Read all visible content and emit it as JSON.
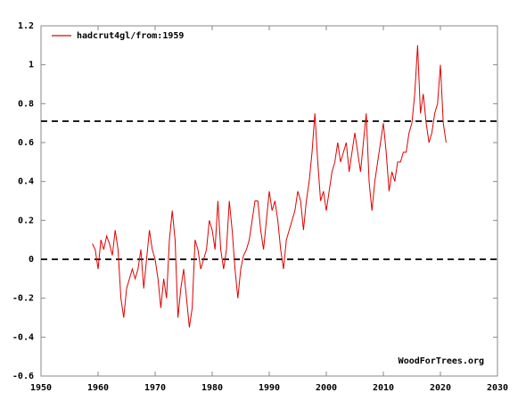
{
  "chart_data": {
    "type": "line",
    "annotation": "WoodForTrees.org",
    "xlim": [
      1950,
      2030
    ],
    "xticks": [
      1950,
      1960,
      1970,
      1980,
      1990,
      2000,
      2010,
      2020,
      2030
    ],
    "ylim": [
      -0.6,
      1.2
    ],
    "yticks": [
      -0.6,
      -0.4,
      -0.2,
      0,
      0.2,
      0.4,
      0.6,
      0.8,
      1,
      1.2
    ],
    "hlines": [
      0.71,
      0.0
    ],
    "x": [
      1959,
      1959.5,
      1960,
      1960.5,
      1961,
      1961.5,
      1962,
      1962.5,
      1963,
      1963.5,
      1964,
      1964.5,
      1965,
      1965.5,
      1966,
      1966.5,
      1967,
      1967.5,
      1968,
      1968.5,
      1969,
      1969.5,
      1970,
      1970.5,
      1971,
      1971.5,
      1972,
      1972.5,
      1973,
      1973.5,
      1974,
      1974.5,
      1975,
      1975.5,
      1976,
      1976.5,
      1977,
      1977.5,
      1978,
      1978.5,
      1979,
      1979.5,
      1980,
      1980.5,
      1981,
      1981.5,
      1982,
      1982.5,
      1983,
      1983.5,
      1984,
      1984.5,
      1985,
      1985.5,
      1986,
      1986.5,
      1987,
      1987.5,
      1988,
      1988.5,
      1989,
      1989.5,
      1990,
      1990.5,
      1991,
      1991.5,
      1992,
      1992.5,
      1993,
      1993.5,
      1994,
      1994.5,
      1995,
      1995.5,
      1996,
      1996.5,
      1997,
      1997.5,
      1998,
      1998.5,
      1999,
      1999.5,
      2000,
      2000.5,
      2001,
      2001.5,
      2002,
      2002.5,
      2003,
      2003.5,
      2004,
      2004.5,
      2005,
      2005.5,
      2006,
      2006.5,
      2007,
      2007.5,
      2008,
      2008.5,
      2009,
      2009.5,
      2010,
      2010.5,
      2011,
      2011.5,
      2012,
      2012.5,
      2013,
      2013.5,
      2014,
      2014.5,
      2015,
      2015.5,
      2016,
      2016.5,
      2017,
      2017.5,
      2018,
      2018.5,
      2019,
      2019.5,
      2020,
      2020.5,
      2021
    ],
    "series": [
      {
        "name": "hadcrut4gl/from:1959",
        "color": "#e00000",
        "values": [
          0.08,
          0.05,
          -0.05,
          0.1,
          0.05,
          0.12,
          0.08,
          0.02,
          0.15,
          0.05,
          -0.2,
          -0.3,
          -0.15,
          -0.1,
          -0.05,
          -0.1,
          -0.05,
          0.05,
          -0.15,
          0.0,
          0.15,
          0.05,
          0.0,
          -0.1,
          -0.25,
          -0.1,
          -0.2,
          0.1,
          0.25,
          0.1,
          -0.3,
          -0.15,
          -0.05,
          -0.2,
          -0.35,
          -0.25,
          0.1,
          0.05,
          -0.05,
          0.0,
          0.05,
          0.2,
          0.15,
          0.05,
          0.3,
          0.05,
          -0.05,
          0.05,
          0.3,
          0.15,
          -0.05,
          -0.2,
          -0.05,
          0.02,
          0.05,
          0.1,
          0.2,
          0.3,
          0.3,
          0.15,
          0.05,
          0.2,
          0.35,
          0.25,
          0.3,
          0.2,
          0.05,
          -0.05,
          0.1,
          0.15,
          0.2,
          0.25,
          0.35,
          0.3,
          0.15,
          0.3,
          0.4,
          0.55,
          0.75,
          0.5,
          0.3,
          0.35,
          0.25,
          0.35,
          0.45,
          0.5,
          0.6,
          0.5,
          0.55,
          0.6,
          0.45,
          0.55,
          0.65,
          0.55,
          0.45,
          0.6,
          0.75,
          0.4,
          0.25,
          0.4,
          0.5,
          0.6,
          0.7,
          0.55,
          0.35,
          0.45,
          0.4,
          0.5,
          0.5,
          0.55,
          0.55,
          0.65,
          0.7,
          0.85,
          1.1,
          0.75,
          0.85,
          0.7,
          0.6,
          0.65,
          0.75,
          0.8,
          1.0,
          0.7,
          0.6
        ]
      }
    ]
  }
}
